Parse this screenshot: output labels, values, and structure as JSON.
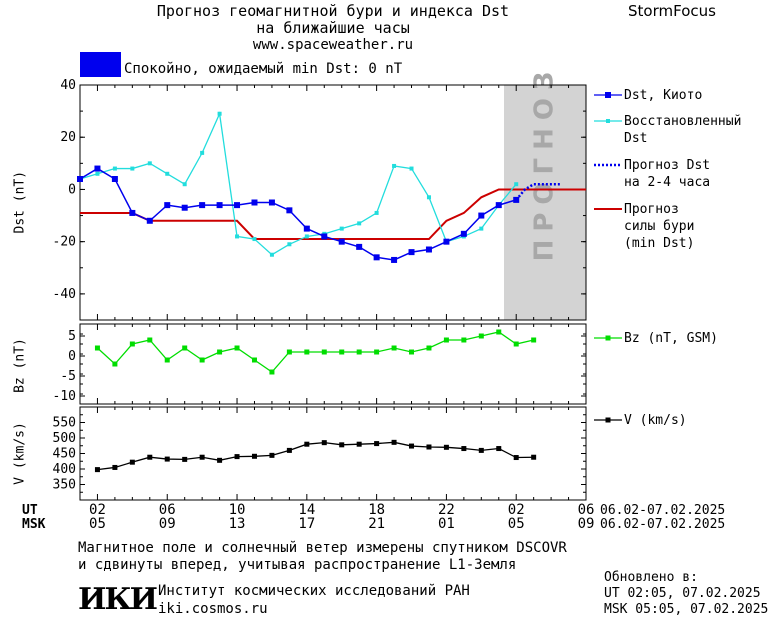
{
  "header": {
    "title_line1": "Прогноз геомагнитной бури и индекса Dst",
    "title_line2": "на ближайшие часы",
    "site": "www.spaceweather.ru",
    "brand": "StormFocus"
  },
  "status": {
    "color": "#0000ee",
    "text": "Спокойно, ожидаемый min Dst: 0 nT"
  },
  "forecast_band_label": "ПРОГНОЗ",
  "colors": {
    "dst": "#0000ee",
    "restored": "#22dddd",
    "forecast_dst": "#0000ee",
    "storm_forecast": "#cc0000",
    "bz": "#00dd00",
    "v": "#000000",
    "forecast_band": "#d3d3d3"
  },
  "legend": {
    "dst_kyoto": "Dst, Киото",
    "restored_1": "Восстановленный",
    "restored_2": "Dst",
    "forecast_dst_1": "Прогноз Dst",
    "forecast_dst_2": "на 2-4 часа",
    "storm_1": "Прогноз",
    "storm_2": "силы бури",
    "storm_3": "(min Dst)",
    "bz": "Bz (nT, GSM)",
    "v": "V (km/s)"
  },
  "footer": {
    "ut_label": "UT",
    "msk_label": "MSK",
    "ut_ticks": [
      "02",
      "06",
      "10",
      "14",
      "18",
      "22",
      "02",
      "06"
    ],
    "msk_ticks": [
      "05",
      "09",
      "13",
      "17",
      "21",
      "01",
      "05",
      "09"
    ],
    "date_range_ut": "06.02-07.02.2025",
    "date_range_msk": "06.02-07.02.2025",
    "note_line1": "Магнитное поле и солнечный ветер измерены спутником DSCOVR",
    "note_line2": "и сдвинуты вперед, учитывая распространение L1-Земля",
    "logo": "ИКИ",
    "institute": "Институт космических исследований РАН",
    "institute_site": "iki.cosmos.ru",
    "updated_label": "Обновлено в:",
    "updated_ut": "UT  02:05, 07.02.2025",
    "updated_msk": "MSK 05:05, 07.02.2025"
  },
  "chart_data": [
    {
      "type": "line",
      "title": "Прогноз геомагнитной бури и индекса Dst на ближайшие часы",
      "ylabel": "Dst (nT)",
      "xlabel": "UT",
      "x_unit": "hours since 06.02.2025 01:00 UT",
      "xlim": [
        0,
        29
      ],
      "ylim": [
        -50,
        40
      ],
      "y_ticks": [
        40,
        20,
        0,
        -20,
        -40
      ],
      "forecast_band": [
        24.3,
        29
      ],
      "series": [
        {
          "name": "Dst, Киото",
          "x": [
            0,
            1,
            2,
            3,
            4,
            5,
            6,
            7,
            8,
            9,
            10,
            11,
            12,
            13,
            14,
            15,
            16,
            17,
            18,
            19,
            20,
            21,
            22,
            23,
            24,
            25
          ],
          "values": [
            4,
            8,
            4,
            -9,
            -12,
            -6,
            -7,
            -6,
            -6,
            -6,
            -5,
            -5,
            -8,
            -15,
            -18,
            -20,
            -22,
            -26,
            -27,
            -24,
            -23,
            -20,
            -17,
            -10,
            -6,
            -4
          ]
        },
        {
          "name": "Восстановленный Dst",
          "x": [
            0,
            1,
            2,
            3,
            4,
            5,
            6,
            7,
            8,
            9,
            10,
            11,
            12,
            13,
            14,
            15,
            16,
            17,
            18,
            19,
            20,
            21,
            22,
            23,
            24,
            25
          ],
          "values": [
            4,
            6,
            8,
            8,
            10,
            6,
            2,
            14,
            29,
            -18,
            -19,
            -25,
            -21,
            -18,
            -17,
            -15,
            -13,
            -9,
            9,
            8,
            -3,
            -20,
            -18,
            -15,
            -6,
            2
          ]
        },
        {
          "name": "Прогноз Dst на 2-4 часа",
          "x": [
            25,
            25.5,
            26,
            26.5,
            27,
            27.5
          ],
          "values": [
            -4,
            0,
            2,
            2,
            2,
            2
          ]
        },
        {
          "name": "Прогноз силы бури (min Dst)",
          "x": [
            0,
            3,
            4,
            9,
            10,
            19,
            20,
            21,
            22,
            23,
            24,
            25,
            29
          ],
          "values": [
            -9,
            -9,
            -12,
            -12,
            -19,
            -19,
            -19,
            -12,
            -9,
            -3,
            0,
            0,
            0
          ]
        }
      ]
    },
    {
      "type": "line",
      "ylabel": "Bz (nT)",
      "ylim": [
        -12,
        8
      ],
      "y_ticks": [
        5,
        0,
        -5,
        -10
      ],
      "series": [
        {
          "name": "Bz (nT, GSM)",
          "x": [
            1,
            2,
            3,
            4,
            5,
            6,
            7,
            8,
            9,
            10,
            11,
            12,
            13,
            14,
            15,
            16,
            17,
            18,
            19,
            20,
            21,
            22,
            23,
            24,
            25,
            26
          ],
          "values": [
            2,
            -2,
            3,
            4,
            -1,
            2,
            -1,
            1,
            2,
            -1,
            -4,
            1,
            1,
            1,
            1,
            1,
            1,
            2,
            1,
            2,
            4,
            4,
            5,
            6,
            3,
            4
          ]
        }
      ]
    },
    {
      "type": "line",
      "ylabel": "V (km/s)",
      "ylim": [
        300,
        600
      ],
      "y_ticks": [
        550,
        500,
        450,
        400,
        350
      ],
      "series": [
        {
          "name": "V (km/s)",
          "x": [
            1,
            2,
            3,
            4,
            5,
            6,
            7,
            8,
            9,
            10,
            11,
            12,
            13,
            14,
            15,
            16,
            17,
            18,
            19,
            20,
            21,
            22,
            23,
            24,
            25,
            26
          ],
          "values": [
            398,
            405,
            422,
            438,
            432,
            431,
            438,
            428,
            440,
            441,
            444,
            460,
            480,
            485,
            478,
            480,
            482,
            486,
            474,
            471,
            470,
            466,
            460,
            466,
            437,
            438
          ]
        }
      ]
    }
  ]
}
